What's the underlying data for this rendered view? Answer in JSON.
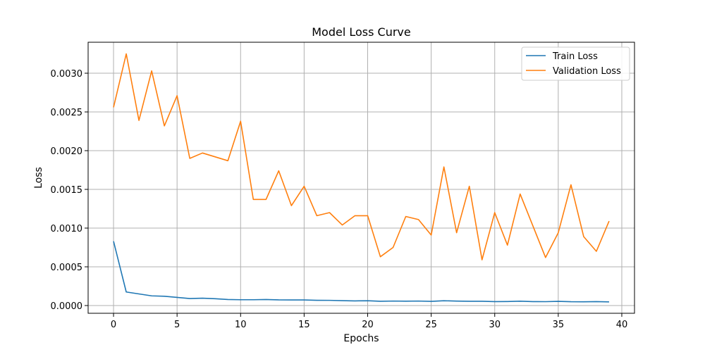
{
  "chart_data": {
    "type": "line",
    "title": "Model Loss Curve",
    "xlabel": "Epochs",
    "ylabel": "Loss",
    "xlim": [
      -2,
      41
    ],
    "ylim": [
      -0.0001,
      0.0034
    ],
    "xticks": [
      0,
      5,
      10,
      15,
      20,
      25,
      30,
      35,
      40
    ],
    "xtick_labels": [
      "0",
      "5",
      "10",
      "15",
      "20",
      "25",
      "30",
      "35",
      "40"
    ],
    "yticks": [
      0.0,
      0.0005,
      0.001,
      0.0015,
      0.002,
      0.0025,
      0.003
    ],
    "ytick_labels": [
      "0.0000",
      "0.0005",
      "0.0010",
      "0.0015",
      "0.0020",
      "0.0025",
      "0.0030"
    ],
    "grid": true,
    "legend_position": "top-right",
    "x": [
      0,
      1,
      2,
      3,
      4,
      5,
      6,
      7,
      8,
      9,
      10,
      11,
      12,
      13,
      14,
      15,
      16,
      17,
      18,
      19,
      20,
      21,
      22,
      23,
      24,
      25,
      26,
      27,
      28,
      29,
      30,
      31,
      32,
      33,
      34,
      35,
      36,
      37,
      38,
      39
    ],
    "series": [
      {
        "name": "Train Loss",
        "color": "#1f77b4",
        "values": [
          0.00083,
          0.000175,
          0.00015,
          0.000125,
          0.00012,
          0.000105,
          9e-05,
          9.5e-05,
          8.8e-05,
          7.8e-05,
          7.5e-05,
          7.5e-05,
          7.8e-05,
          7.3e-05,
          7.2e-05,
          7.2e-05,
          6.8e-05,
          6.7e-05,
          6.3e-05,
          6e-05,
          6.2e-05,
          5.5e-05,
          5.8e-05,
          5.6e-05,
          5.8e-05,
          5.4e-05,
          6.2e-05,
          5.7e-05,
          5.5e-05,
          5.5e-05,
          5.1e-05,
          5.2e-05,
          5.6e-05,
          5.1e-05,
          5e-05,
          5.4e-05,
          4.9e-05,
          4.8e-05,
          5.1e-05,
          4.7e-05
        ]
      },
      {
        "name": "Validation Loss",
        "color": "#ff7f0e",
        "values": [
          0.00256,
          0.00325,
          0.00239,
          0.00303,
          0.00232,
          0.00271,
          0.0019,
          0.00197,
          0.00192,
          0.00187,
          0.00238,
          0.00137,
          0.00137,
          0.00174,
          0.00129,
          0.00154,
          0.00116,
          0.0012,
          0.00104,
          0.00116,
          0.00116,
          0.00063,
          0.00075,
          0.00115,
          0.00111,
          0.00091,
          0.00179,
          0.00094,
          0.00154,
          0.00059,
          0.0012,
          0.00078,
          0.00144,
          0.00103,
          0.00062,
          0.00094,
          0.00156,
          0.00089,
          0.0007,
          0.00109
        ]
      }
    ]
  }
}
